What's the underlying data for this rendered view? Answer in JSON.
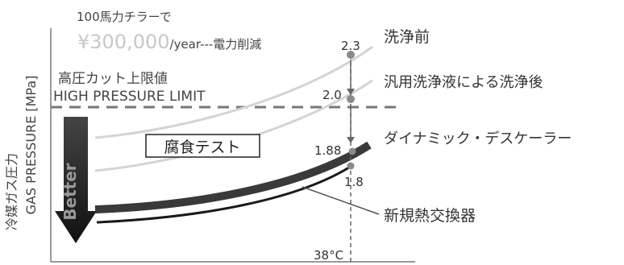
{
  "chart_data": {
    "type": "line",
    "ylabel_jp": "冷媒ガス圧力",
    "ylabel_en": "GAS PRESSURE [MPa]",
    "header_line1": "100馬力チラーで",
    "header_amount": "¥300,000",
    "header_rest": "/year---電力削減",
    "limit_label_jp": "高圧カット上限値",
    "limit_label_en": "HIGH PRESSURE LIMIT",
    "better_label": "Better",
    "test_label": "腐食テスト",
    "temp_label": "38°C",
    "series": [
      {
        "name": "洗浄前",
        "value_at_38C": "2.3"
      },
      {
        "name": "汎用洗浄液による洗浄後",
        "value_at_38C": "2.0"
      },
      {
        "name": "ダイナミック・デスケーラー",
        "value_at_38C": "1.88"
      },
      {
        "name": "新規熱交換器",
        "value_at_38C": "1.8"
      }
    ],
    "colors": {
      "before": "#d4d4d4",
      "after_general": "#d4d4d4",
      "descaler": "#3a3a3a",
      "new_hx": "#1a1a1a",
      "limit": "#777777",
      "marker": "#8a8a8a",
      "accent_amount": "#c8c8c8"
    }
  }
}
